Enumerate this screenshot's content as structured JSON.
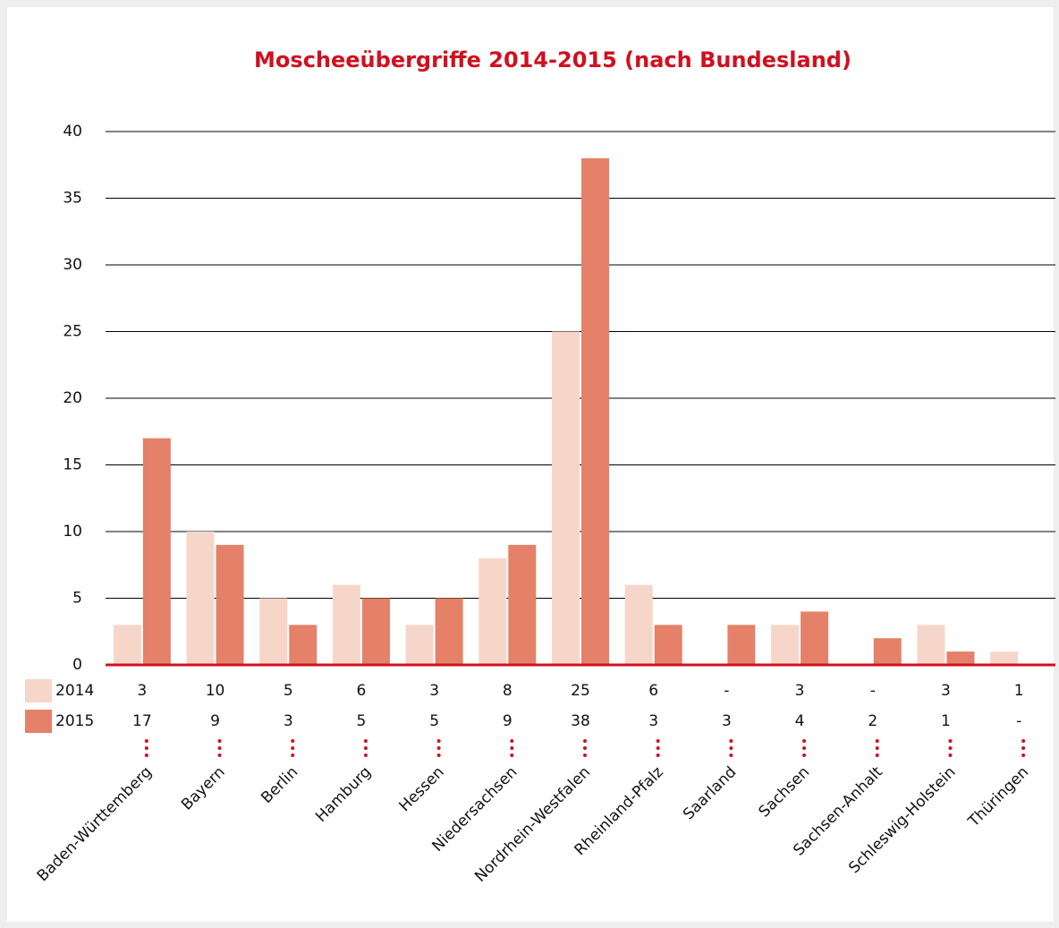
{
  "chart_data": {
    "type": "bar",
    "title": "Moscheeübergriffe 2014-2015 (nach Bundesland)",
    "categories": [
      "Baden-Württemberg",
      "Bayern",
      "Berlin",
      "Hamburg",
      "Hessen",
      "Niedersachsen",
      "Nordrhein-Westfalen",
      "Rheinland-Pfalz",
      "Saarland",
      "Sachsen",
      "Sachsen-Anhalt",
      "Schleswig-Holstein",
      "Thüringen"
    ],
    "series": [
      {
        "name": "2014",
        "color": "#f7d6ca",
        "values": [
          3,
          10,
          5,
          6,
          3,
          8,
          25,
          6,
          null,
          3,
          null,
          3,
          1
        ],
        "value_labels": [
          "3",
          "10",
          "5",
          "6",
          "3",
          "8",
          "25",
          "6",
          "-",
          "3",
          "-",
          "3",
          "1"
        ]
      },
      {
        "name": "2015",
        "color": "#e58169",
        "values": [
          17,
          9,
          3,
          5,
          5,
          9,
          38,
          3,
          3,
          4,
          2,
          1,
          null
        ],
        "value_labels": [
          "17",
          "9",
          "3",
          "5",
          "5",
          "9",
          "38",
          "3",
          "3",
          "4",
          "2",
          "1",
          "-"
        ]
      }
    ],
    "ylim": [
      0,
      40
    ],
    "yticks": [
      0,
      5,
      10,
      15,
      20,
      25,
      30,
      35,
      40
    ],
    "grid": true
  }
}
